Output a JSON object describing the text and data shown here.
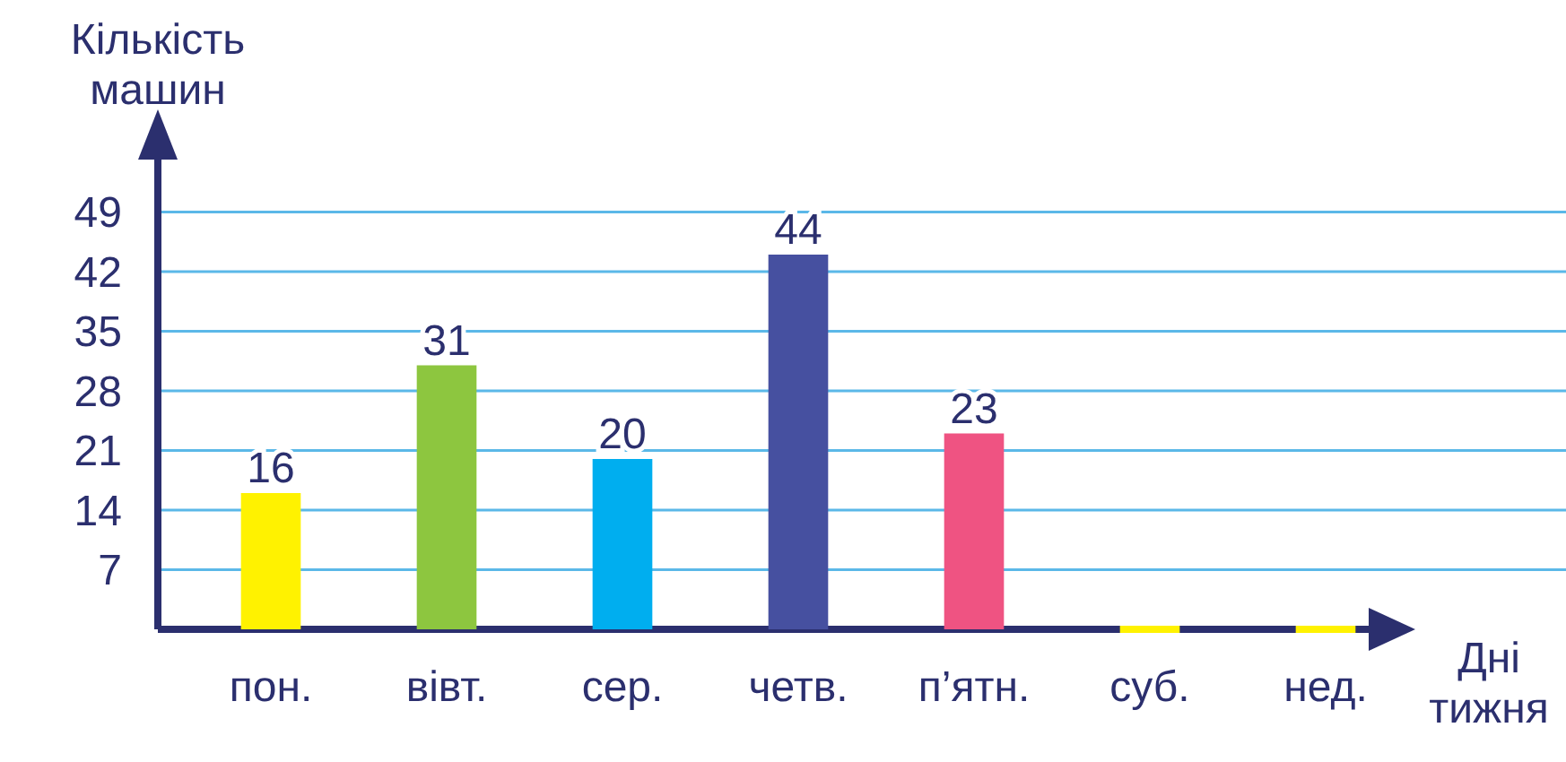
{
  "chart_data": {
    "type": "bar",
    "ylabel": "Кількість машин",
    "xlabel": "Дні тижня",
    "categories": [
      "пон.",
      "вівт.",
      "сер.",
      "четв.",
      "п’ятн.",
      "суб.",
      "нед."
    ],
    "values": [
      16,
      31,
      20,
      44,
      23,
      0,
      0
    ],
    "colors": [
      "#fff200",
      "#8dc63f",
      "#00aeef",
      "#4650a0",
      "#ef5382",
      "#fff200",
      "#fff200"
    ],
    "value_labels": [
      "16",
      "31",
      "20",
      "44",
      "23",
      null,
      null
    ],
    "ylim": [
      0,
      56
    ],
    "yticks": [
      7,
      14,
      21,
      28,
      35,
      42,
      49
    ],
    "grid": "y"
  }
}
